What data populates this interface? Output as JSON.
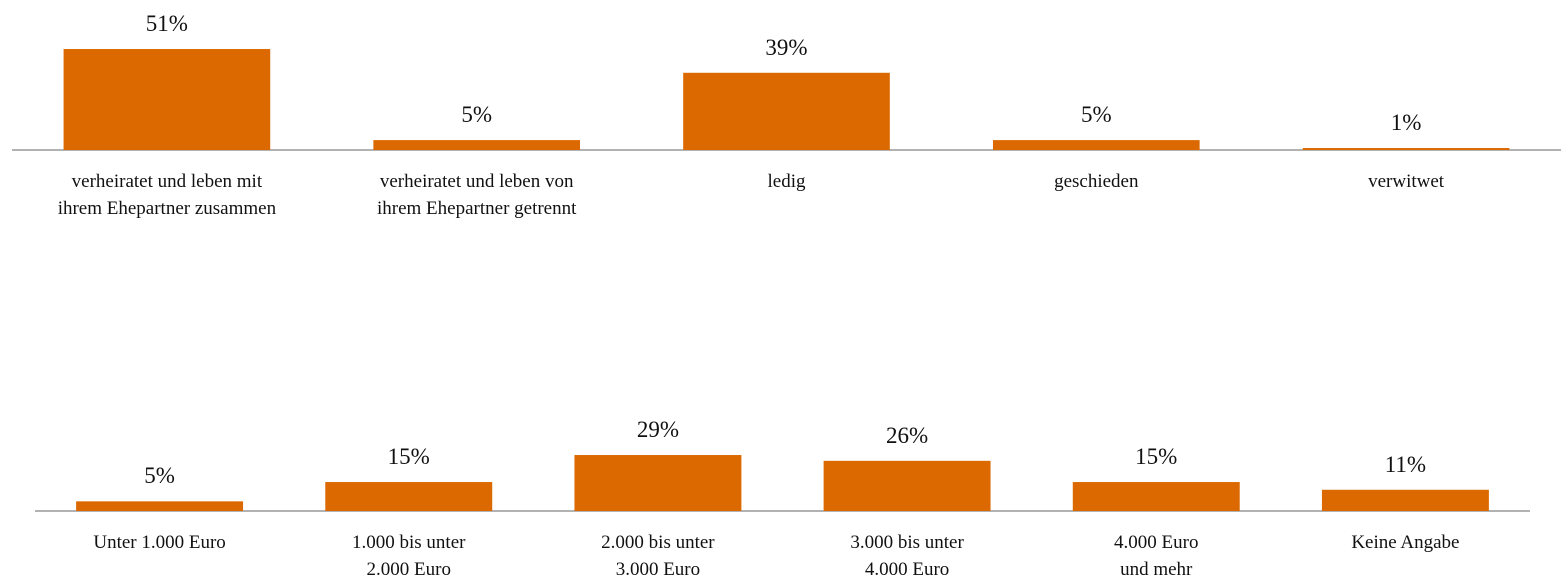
{
  "chart_data": [
    {
      "type": "bar",
      "color": "#dc6900",
      "categories": [
        "verheiratet und leben mit\nihrem Ehepartner zusammen",
        "verheiratet und leben von\nihrem Ehepartner getrennt",
        "ledig",
        "geschieden",
        "verwitwet"
      ],
      "values": [
        51,
        5,
        39,
        5,
        1
      ],
      "value_labels": [
        "51%",
        "5%",
        "39%",
        "5%",
        "1%"
      ]
    },
    {
      "type": "bar",
      "color": "#dc6900",
      "categories": [
        "Unter 1.000 Euro",
        "1.000 bis unter\n2.000 Euro",
        "2.000 bis unter\n3.000 Euro",
        "3.000 bis unter\n4.000 Euro",
        "4.000 Euro\nund mehr",
        "Keine Angabe"
      ],
      "values": [
        5,
        15,
        29,
        26,
        15,
        11
      ],
      "value_labels": [
        "5%",
        "15%",
        "29%",
        "26%",
        "15%",
        "11%"
      ]
    }
  ]
}
